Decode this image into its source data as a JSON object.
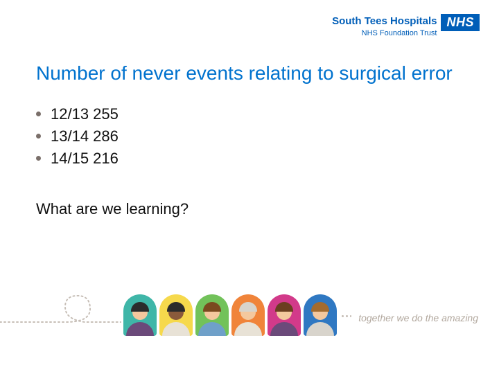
{
  "header": {
    "trust_name": "South Tees Hospitals",
    "trust_sub": "NHS Foundation Trust",
    "nhs_badge": "NHS",
    "trust_color": "#005EB8"
  },
  "title": "Number of never events relating to surgical error",
  "title_color": "#0072CE",
  "bullets": [
    "12/13 255",
    "13/14 286",
    "14/15 216"
  ],
  "bullet_color": "#7a6f6a",
  "text_color": "#111111",
  "question": "What are we learning?",
  "tagline": "together we do the amazing",
  "tagline_color": "#b2a89e",
  "avatars": [
    {
      "bg": "#3fb6a8",
      "skin": "#f4c89e",
      "hair": "#2b2b2b",
      "body": "#6b4a7a"
    },
    {
      "bg": "#f6d94c",
      "skin": "#8a5a3b",
      "hair": "#2b2b2b",
      "body": "#e8e2d6"
    },
    {
      "bg": "#72c25a",
      "skin": "#f4c89e",
      "hair": "#7a4a1f",
      "body": "#6fa0c9"
    },
    {
      "bg": "#f0843a",
      "skin": "#f4c89e",
      "hair": "#d8d4cc",
      "body": "#e8e2d6"
    },
    {
      "bg": "#d23a8a",
      "skin": "#f4c89e",
      "hair": "#6b3e20",
      "body": "#6b4a7a"
    },
    {
      "bg": "#2f78c2",
      "skin": "#f4c89e",
      "hair": "#a36b2e",
      "body": "#d8d4cc"
    }
  ],
  "dotted_color": "#c7bfb7"
}
